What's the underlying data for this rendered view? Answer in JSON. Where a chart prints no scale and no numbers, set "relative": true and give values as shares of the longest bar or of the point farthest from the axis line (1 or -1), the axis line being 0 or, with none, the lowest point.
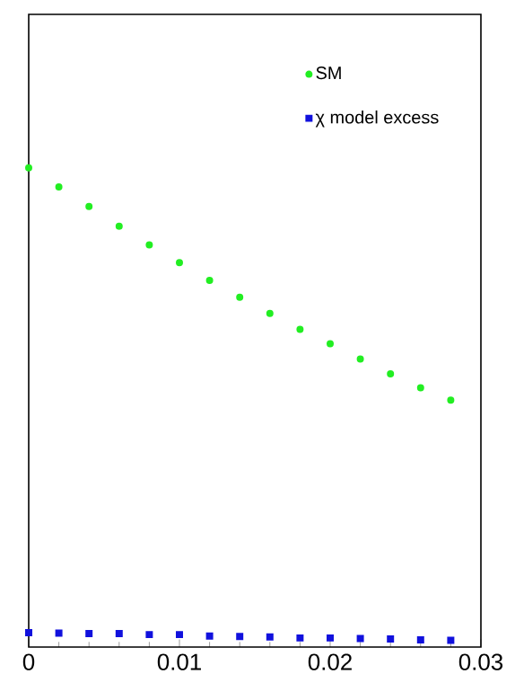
{
  "chart_data": {
    "type": "scatter",
    "relative": true,
    "legend": "top right",
    "x": [
      0,
      0.002,
      0.004,
      0.006,
      0.008,
      0.01,
      0.012,
      0.014,
      0.016,
      0.018,
      0.02,
      0.022,
      0.024,
      0.026,
      0.028
    ],
    "xlim": [
      0,
      0.03
    ],
    "xticks": [
      0,
      0.01,
      0.02,
      0.03
    ],
    "series": [
      {
        "name": "SM",
        "color": "#22ee22",
        "marker": "circle",
        "values": [
          1,
          0.96,
          0.919,
          0.878,
          0.839,
          0.802,
          0.765,
          0.73,
          0.696,
          0.663,
          0.633,
          0.601,
          0.57,
          0.541,
          0.515
        ]
      },
      {
        "name": "χ model excess",
        "color": "#1111dd",
        "marker": "square",
        "values": [
          0.03,
          0.029,
          0.028,
          0.028,
          0.026,
          0.026,
          0.023,
          0.022,
          0.021,
          0.019,
          0.019,
          0.018,
          0.017,
          0.015,
          0.014
        ]
      }
    ]
  }
}
